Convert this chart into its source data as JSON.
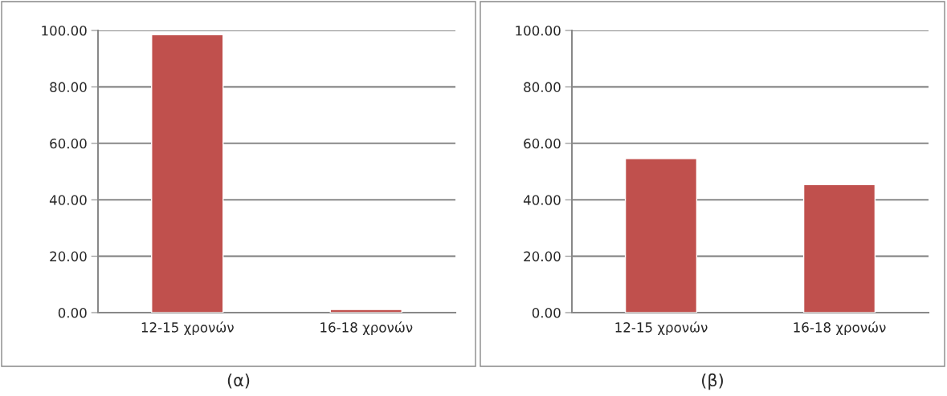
{
  "chart_data": [
    {
      "type": "bar",
      "categories": [
        "12-15 χρονών",
        "16-18 χρονών"
      ],
      "values": [
        98.5,
        1.1
      ],
      "color": "#c0504d",
      "ylim": [
        0,
        100
      ],
      "yticks": [
        {
          "value": 0,
          "label": "0.00"
        },
        {
          "value": 20,
          "label": "20.00"
        },
        {
          "value": 40,
          "label": "40.00"
        },
        {
          "value": 60,
          "label": "60.00"
        },
        {
          "value": 80,
          "label": "80.00"
        },
        {
          "value": 100,
          "label": "100.00"
        }
      ],
      "grid": "y",
      "annotations": [
        "(α)"
      ]
    },
    {
      "type": "bar",
      "categories": [
        "12-15 χρονών",
        "16-18 χρονών"
      ],
      "values": [
        54.6,
        45.4
      ],
      "color": "#c0504d",
      "ylim": [
        0,
        100
      ],
      "yticks": [
        {
          "value": 0,
          "label": "0.00"
        },
        {
          "value": 20,
          "label": "20.00"
        },
        {
          "value": 40,
          "label": "40.00"
        },
        {
          "value": 60,
          "label": "60.00"
        },
        {
          "value": 80,
          "label": "80.00"
        },
        {
          "value": 100,
          "label": "100.00"
        }
      ],
      "grid": "y",
      "annotations": [
        "(β)"
      ]
    }
  ]
}
